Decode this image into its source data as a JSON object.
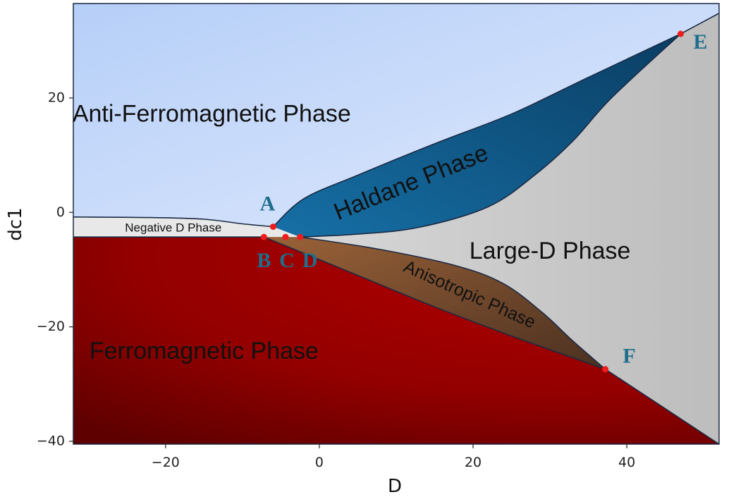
{
  "chart_data": {
    "type": "area",
    "title": "",
    "xlabel": "D",
    "ylabel": "dc1",
    "xlim": [
      -32,
      52
    ],
    "ylim": [
      -40.5,
      36.5
    ],
    "x_ticks": [
      -20,
      0,
      20,
      40
    ],
    "y_ticks": [
      20,
      0,
      -20,
      -40
    ],
    "x_tick_labels": [
      "−20",
      "0",
      "20",
      "40"
    ],
    "y_tick_labels": [
      "20",
      "0",
      "−20",
      "−40"
    ],
    "grid": false,
    "colors": {
      "anti_ferromagnetic": "#c9dbfb",
      "haldane": "#0f5a8c",
      "large_d": "#d4d4d4",
      "negative_d": "#e8e8e8",
      "anisotropic": "#8a5533",
      "ferromagnetic": "#9b0000",
      "points": "#ee1c1c",
      "point_labels": "#1f6e8c",
      "boundary": "#1a2a44"
    },
    "regions": [
      {
        "name": "Anti-Ferromagnetic Phase",
        "label_at": [
          -14,
          17
        ],
        "color": "anti_ferromagnetic"
      },
      {
        "name": "Haldane Phase",
        "label_at": [
          12,
          5
        ],
        "color": "haldane",
        "label_rotation": -22
      },
      {
        "name": "Large-D Phase",
        "label_at": [
          30,
          -7
        ],
        "color": "large_d"
      },
      {
        "name": "Negative D Phase",
        "label_at": [
          -19,
          -2.8
        ],
        "color": "negative_d"
      },
      {
        "name": "Anisotropic Phase",
        "label_at": [
          19.5,
          -14.5
        ],
        "color": "anisotropic",
        "label_rotation": 24
      },
      {
        "name": "Ferromagnetic Phase",
        "label_at": [
          -15,
          -24.5
        ],
        "color": "ferromagnetic"
      }
    ],
    "boundaries": {
      "afm_negd": [
        [
          -32,
          -0.8
        ],
        [
          -22,
          -0.9
        ],
        [
          -15,
          -1.2
        ],
        [
          -10,
          -2.0
        ],
        [
          -6,
          -2.5
        ]
      ],
      "haldane_upper": [
        [
          -6,
          -2.5
        ],
        [
          -2,
          2.4
        ],
        [
          5,
          6.5
        ],
        [
          15,
          12
        ],
        [
          25,
          17.2
        ],
        [
          35,
          23.6
        ],
        [
          47,
          31.2
        ]
      ],
      "haldane_lower": [
        [
          -2.5,
          -4.3
        ],
        [
          5,
          -3.8
        ],
        [
          13,
          -2.6
        ],
        [
          22,
          1
        ],
        [
          28,
          6.5
        ],
        [
          33,
          12.5
        ],
        [
          38,
          20
        ],
        [
          47,
          31.2
        ]
      ],
      "afm_larged_upper": [
        [
          47,
          31.2
        ],
        [
          52,
          34.8
        ]
      ],
      "ferro_top": [
        [
          -32,
          -4.3
        ],
        [
          -7.2,
          -4.3
        ]
      ],
      "aniso_upper": [
        [
          -2.5,
          -4.3
        ],
        [
          8,
          -6.5
        ],
        [
          18,
          -9.4
        ],
        [
          24,
          -12.5
        ],
        [
          29,
          -17.5
        ],
        [
          33,
          -22.5
        ],
        [
          37.2,
          -27.4
        ]
      ],
      "aniso_lower": [
        [
          -7.2,
          -4.3
        ],
        [
          5,
          -11
        ],
        [
          15,
          -16.5
        ],
        [
          25,
          -21.6
        ],
        [
          37.2,
          -27.4
        ]
      ],
      "ferro_larged": [
        [
          37.2,
          -27.4
        ],
        [
          52,
          -40.5
        ]
      ]
    },
    "special_points": [
      {
        "name": "A",
        "x": -6,
        "y": -2.5
      },
      {
        "name": "B",
        "x": -7.2,
        "y": -4.3
      },
      {
        "name": "C",
        "x": -4.4,
        "y": -4.3
      },
      {
        "name": "D",
        "x": -2.5,
        "y": -4.3
      },
      {
        "name": "E",
        "x": 47,
        "y": 31.2
      },
      {
        "name": "F",
        "x": 37.2,
        "y": -27.4
      }
    ]
  }
}
